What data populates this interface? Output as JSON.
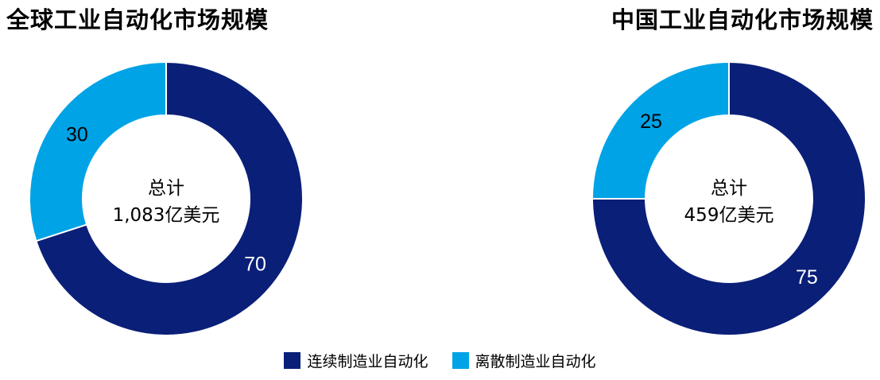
{
  "chart_data": [
    {
      "type": "pie",
      "title": "全球工业自动化市场规模",
      "categories": [
        "连续制造业自动化",
        "离散制造业自动化"
      ],
      "values": [
        70,
        30
      ],
      "center_label": "总计",
      "center_value": "1,083亿美元",
      "colors": [
        "#0a1f78",
        "#00a3e6"
      ],
      "donut": true
    },
    {
      "type": "pie",
      "title": "中国工业自动化市场规模",
      "categories": [
        "连续制造业自动化",
        "离散制造业自动化"
      ],
      "values": [
        75,
        25
      ],
      "center_label": "总计",
      "center_value": "459亿美元",
      "colors": [
        "#0a1f78",
        "#00a3e6"
      ],
      "donut": true
    }
  ],
  "legend": [
    {
      "label": "连续制造业自动化",
      "color": "#0a1f78"
    },
    {
      "label": "离散制造业自动化",
      "color": "#00a3e6"
    }
  ]
}
